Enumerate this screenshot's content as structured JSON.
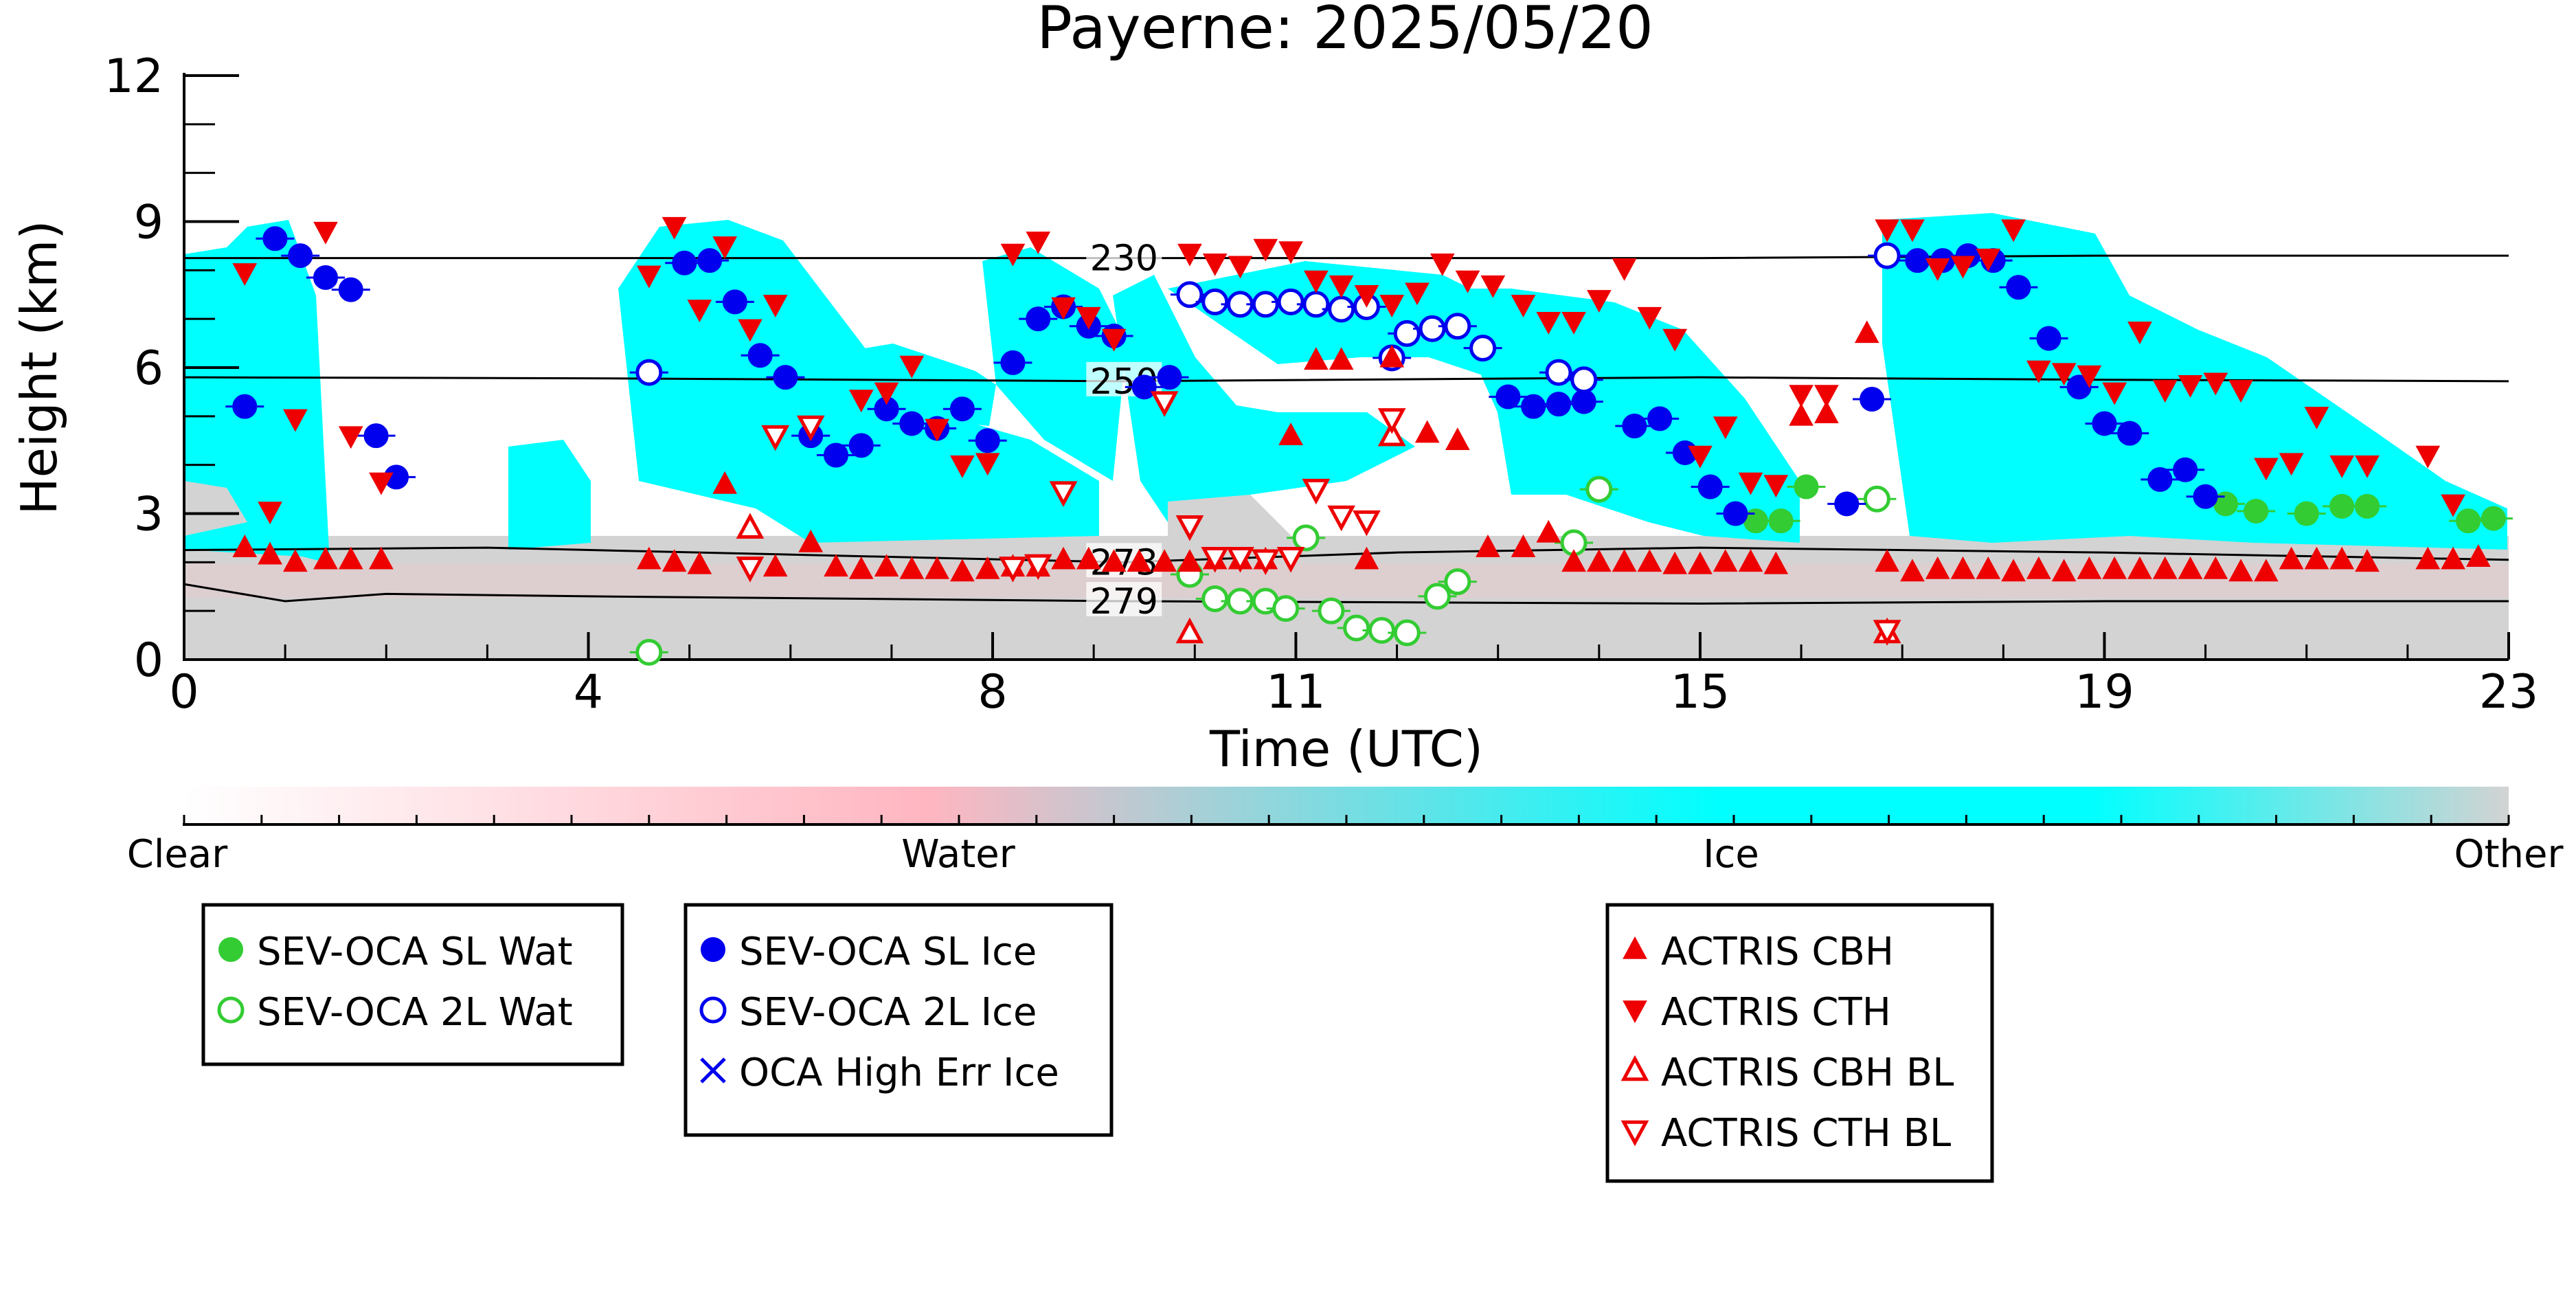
{
  "chart_data": {
    "type": "scatter",
    "title": "Payerne: 2025/05/20",
    "xlabel": "Time (UTC)",
    "ylabel": "Height (km)",
    "xlim": [
      0,
      23
    ],
    "ylim": [
      0,
      12
    ],
    "x_ticks": [
      "0",
      "4",
      "8",
      "11",
      "15",
      "19",
      "23"
    ],
    "y_ticks": [
      "0",
      "3",
      "6",
      "9",
      "12"
    ],
    "contours": [
      {
        "label": "230",
        "points": [
          [
            0,
            8.25
          ],
          [
            4,
            8.25
          ],
          [
            9.3,
            8.25
          ],
          [
            15,
            8.25
          ],
          [
            19,
            8.3
          ],
          [
            23,
            8.3
          ]
        ]
      },
      {
        "label": "250",
        "points": [
          [
            0,
            5.8
          ],
          [
            4,
            5.78
          ],
          [
            9.3,
            5.72
          ],
          [
            15,
            5.8
          ],
          [
            19,
            5.75
          ],
          [
            23,
            5.72
          ]
        ]
      },
      {
        "label": "273",
        "points": [
          [
            0,
            2.25
          ],
          [
            3,
            2.3
          ],
          [
            9.3,
            2.0
          ],
          [
            12,
            2.2
          ],
          [
            15,
            2.3
          ],
          [
            19,
            2.2
          ],
          [
            23,
            2.05
          ]
        ]
      },
      {
        "label": "279",
        "points": [
          [
            0,
            1.55
          ],
          [
            1,
            1.2
          ],
          [
            2,
            1.35
          ],
          [
            4,
            1.3
          ],
          [
            9.3,
            1.2
          ],
          [
            15,
            1.15
          ],
          [
            19,
            1.2
          ],
          [
            23,
            1.2
          ]
        ]
      }
    ],
    "colorbar": {
      "labels": [
        "Clear",
        "Water",
        "Ice",
        "Other"
      ],
      "colors": [
        "#ffffff",
        "#ffb6c1",
        "#00ffff",
        "#d3d3d3"
      ]
    },
    "series": [
      {
        "name": "SEV-OCA SL Wat",
        "marker": "circle-filled",
        "color": "#33cc33",
        "points": [
          [
            15.55,
            2.85
          ],
          [
            15.8,
            2.85
          ],
          [
            16.05,
            3.55
          ],
          [
            20.2,
            3.2
          ],
          [
            20.5,
            3.05
          ],
          [
            21.0,
            3.0
          ],
          [
            21.35,
            3.15
          ],
          [
            21.6,
            3.15
          ],
          [
            22.6,
            2.85
          ],
          [
            22.85,
            2.9
          ]
        ]
      },
      {
        "name": "SEV-OCA 2L Wat",
        "marker": "circle-open",
        "color": "#33cc33",
        "points": [
          [
            4.6,
            0.15
          ],
          [
            9.95,
            1.75
          ],
          [
            10.2,
            1.25
          ],
          [
            10.45,
            1.2
          ],
          [
            10.7,
            1.2
          ],
          [
            10.9,
            1.05
          ],
          [
            11.1,
            2.5
          ],
          [
            11.35,
            1.0
          ],
          [
            11.6,
            0.65
          ],
          [
            11.85,
            0.6
          ],
          [
            12.1,
            0.55
          ],
          [
            12.4,
            1.3
          ],
          [
            12.6,
            1.6
          ],
          [
            13.75,
            2.4
          ],
          [
            14.0,
            3.5
          ],
          [
            16.75,
            3.3
          ]
        ]
      },
      {
        "name": "SEV-OCA SL Ice",
        "marker": "circle-filled",
        "color": "#0000ee",
        "points": [
          [
            0.6,
            5.2
          ],
          [
            0.9,
            8.65
          ],
          [
            1.15,
            8.3
          ],
          [
            1.4,
            7.85
          ],
          [
            1.65,
            7.6
          ],
          [
            1.9,
            4.6
          ],
          [
            2.1,
            3.75
          ],
          [
            4.95,
            8.15
          ],
          [
            5.2,
            8.2
          ],
          [
            5.45,
            7.35
          ],
          [
            5.7,
            6.25
          ],
          [
            5.95,
            5.8
          ],
          [
            6.2,
            4.6
          ],
          [
            6.45,
            4.2
          ],
          [
            6.7,
            4.4
          ],
          [
            6.95,
            5.15
          ],
          [
            7.2,
            4.85
          ],
          [
            7.45,
            4.75
          ],
          [
            7.7,
            5.15
          ],
          [
            7.95,
            4.5
          ],
          [
            8.2,
            6.1
          ],
          [
            8.45,
            7.0
          ],
          [
            8.7,
            7.25
          ],
          [
            8.95,
            6.85
          ],
          [
            9.2,
            6.65
          ],
          [
            9.5,
            5.6
          ],
          [
            9.75,
            5.8
          ],
          [
            13.1,
            5.4
          ],
          [
            13.35,
            5.2
          ],
          [
            13.6,
            5.25
          ],
          [
            13.85,
            5.3
          ],
          [
            14.35,
            4.8
          ],
          [
            14.6,
            4.95
          ],
          [
            14.85,
            4.25
          ],
          [
            15.1,
            3.55
          ],
          [
            15.35,
            3.0
          ],
          [
            16.7,
            5.35
          ],
          [
            16.45,
            3.2
          ],
          [
            17.15,
            8.2
          ],
          [
            17.4,
            8.2
          ],
          [
            17.65,
            8.3
          ],
          [
            17.9,
            8.2
          ],
          [
            18.15,
            7.65
          ],
          [
            18.45,
            6.6
          ],
          [
            18.75,
            5.6
          ],
          [
            19.0,
            4.85
          ],
          [
            19.25,
            4.65
          ],
          [
            19.55,
            3.7
          ],
          [
            19.8,
            3.9
          ],
          [
            20.0,
            3.35
          ]
        ]
      },
      {
        "name": "SEV-OCA 2L Ice",
        "marker": "circle-open",
        "color": "#0000ee",
        "points": [
          [
            4.6,
            5.9
          ],
          [
            9.95,
            7.5
          ],
          [
            10.2,
            7.35
          ],
          [
            10.45,
            7.3
          ],
          [
            10.7,
            7.3
          ],
          [
            10.95,
            7.35
          ],
          [
            11.2,
            7.3
          ],
          [
            11.45,
            7.2
          ],
          [
            11.7,
            7.25
          ],
          [
            11.95,
            6.2
          ],
          [
            12.1,
            6.7
          ],
          [
            12.35,
            6.8
          ],
          [
            12.6,
            6.85
          ],
          [
            12.85,
            6.4
          ],
          [
            13.6,
            5.9
          ],
          [
            13.85,
            5.75
          ],
          [
            16.85,
            8.3
          ]
        ]
      },
      {
        "name": "OCA High Err Ice",
        "marker": "x",
        "color": "#0000ee",
        "points": []
      },
      {
        "name": "ACTRIS CBH",
        "marker": "triangle-up-filled",
        "color": "#ee0000",
        "points": [
          [
            0.6,
            2.3
          ],
          [
            0.85,
            2.15
          ],
          [
            1.1,
            2.0
          ],
          [
            1.4,
            2.05
          ],
          [
            1.65,
            2.05
          ],
          [
            1.95,
            2.05
          ],
          [
            4.6,
            2.05
          ],
          [
            4.85,
            2.0
          ],
          [
            5.1,
            1.95
          ],
          [
            5.35,
            3.6
          ],
          [
            5.85,
            1.9
          ],
          [
            6.2,
            2.4
          ],
          [
            6.45,
            1.9
          ],
          [
            6.7,
            1.85
          ],
          [
            6.95,
            1.9
          ],
          [
            7.2,
            1.85
          ],
          [
            7.45,
            1.85
          ],
          [
            7.7,
            1.8
          ],
          [
            7.95,
            1.85
          ],
          [
            8.2,
            1.9
          ],
          [
            8.45,
            1.9
          ],
          [
            8.7,
            2.05
          ],
          [
            8.95,
            2.05
          ],
          [
            9.2,
            2.0
          ],
          [
            9.45,
            2.0
          ],
          [
            9.7,
            2.0
          ],
          [
            9.95,
            2.0
          ],
          [
            10.2,
            2.05
          ],
          [
            10.45,
            2.05
          ],
          [
            10.7,
            2.05
          ],
          [
            10.95,
            4.6
          ],
          [
            11.2,
            6.15
          ],
          [
            11.45,
            6.15
          ],
          [
            11.7,
            2.05
          ],
          [
            11.95,
            6.2
          ],
          [
            12.3,
            4.65
          ],
          [
            12.6,
            4.5
          ],
          [
            12.9,
            2.3
          ],
          [
            13.25,
            2.3
          ],
          [
            13.5,
            2.6
          ],
          [
            13.75,
            2.0
          ],
          [
            14.0,
            2.0
          ],
          [
            14.25,
            2.0
          ],
          [
            14.5,
            2.0
          ],
          [
            14.75,
            1.95
          ],
          [
            15.0,
            1.95
          ],
          [
            15.25,
            2.0
          ],
          [
            15.5,
            2.0
          ],
          [
            15.75,
            1.95
          ],
          [
            16.0,
            5.0
          ],
          [
            16.25,
            5.05
          ],
          [
            16.65,
            6.7
          ],
          [
            16.85,
            2.0
          ],
          [
            17.1,
            1.8
          ],
          [
            17.35,
            1.85
          ],
          [
            17.6,
            1.85
          ],
          [
            17.85,
            1.85
          ],
          [
            18.1,
            1.8
          ],
          [
            18.35,
            1.85
          ],
          [
            18.6,
            1.8
          ],
          [
            18.85,
            1.85
          ],
          [
            19.1,
            1.85
          ],
          [
            19.35,
            1.85
          ],
          [
            19.6,
            1.85
          ],
          [
            19.85,
            1.85
          ],
          [
            20.1,
            1.85
          ],
          [
            20.35,
            1.8
          ],
          [
            20.6,
            1.8
          ],
          [
            20.85,
            2.05
          ],
          [
            21.1,
            2.05
          ],
          [
            21.35,
            2.05
          ],
          [
            21.6,
            2.0
          ],
          [
            22.2,
            2.05
          ],
          [
            22.45,
            2.05
          ],
          [
            22.7,
            2.1
          ]
        ]
      },
      {
        "name": "ACTRIS CTH",
        "marker": "triangle-down-filled",
        "color": "#ee0000",
        "points": [
          [
            0.6,
            7.95
          ],
          [
            0.85,
            3.05
          ],
          [
            1.1,
            4.95
          ],
          [
            1.4,
            8.8
          ],
          [
            1.65,
            4.6
          ],
          [
            1.95,
            3.65
          ],
          [
            4.6,
            7.9
          ],
          [
            4.85,
            8.9
          ],
          [
            5.1,
            7.2
          ],
          [
            5.35,
            8.5
          ],
          [
            5.6,
            6.8
          ],
          [
            5.85,
            7.3
          ],
          [
            6.7,
            5.35
          ],
          [
            6.95,
            5.5
          ],
          [
            7.2,
            6.05
          ],
          [
            7.45,
            4.75
          ],
          [
            7.7,
            4.0
          ],
          [
            7.95,
            4.05
          ],
          [
            8.2,
            8.35
          ],
          [
            8.45,
            8.6
          ],
          [
            8.7,
            7.25
          ],
          [
            8.95,
            7.05
          ],
          [
            9.2,
            6.6
          ],
          [
            9.95,
            8.35
          ],
          [
            10.2,
            8.15
          ],
          [
            10.45,
            8.1
          ],
          [
            10.7,
            8.45
          ],
          [
            10.95,
            8.4
          ],
          [
            11.2,
            7.8
          ],
          [
            11.45,
            7.7
          ],
          [
            11.7,
            7.5
          ],
          [
            11.95,
            7.3
          ],
          [
            12.2,
            7.55
          ],
          [
            12.45,
            8.15
          ],
          [
            12.7,
            7.8
          ],
          [
            12.95,
            7.7
          ],
          [
            13.25,
            7.3
          ],
          [
            13.5,
            6.95
          ],
          [
            13.75,
            6.95
          ],
          [
            14.0,
            7.4
          ],
          [
            14.25,
            8.05
          ],
          [
            14.5,
            7.05
          ],
          [
            14.75,
            6.6
          ],
          [
            15.0,
            4.2
          ],
          [
            15.25,
            4.8
          ],
          [
            15.5,
            3.65
          ],
          [
            15.75,
            3.6
          ],
          [
            16.0,
            5.45
          ],
          [
            16.25,
            5.45
          ],
          [
            16.85,
            8.85
          ],
          [
            17.1,
            8.85
          ],
          [
            17.35,
            8.05
          ],
          [
            17.6,
            8.1
          ],
          [
            17.85,
            8.25
          ],
          [
            18.1,
            8.85
          ],
          [
            18.35,
            5.95
          ],
          [
            18.6,
            5.9
          ],
          [
            18.85,
            5.85
          ],
          [
            19.1,
            5.5
          ],
          [
            19.35,
            6.75
          ],
          [
            19.6,
            5.55
          ],
          [
            19.85,
            5.65
          ],
          [
            20.1,
            5.7
          ],
          [
            20.35,
            5.55
          ],
          [
            20.6,
            3.95
          ],
          [
            20.85,
            4.05
          ],
          [
            21.1,
            5.0
          ],
          [
            21.35,
            4.0
          ],
          [
            21.6,
            4.0
          ],
          [
            22.2,
            4.2
          ],
          [
            22.45,
            3.2
          ]
        ]
      },
      {
        "name": "ACTRIS CBH BL",
        "marker": "triangle-up-open",
        "color": "#ee0000",
        "points": [
          [
            5.6,
            2.7
          ],
          [
            9.95,
            0.55
          ],
          [
            11.95,
            4.6
          ],
          [
            16.85,
            0.55
          ]
        ]
      },
      {
        "name": "ACTRIS CTH BL",
        "marker": "triangle-down-open",
        "color": "#ee0000",
        "points": [
          [
            5.6,
            1.9
          ],
          [
            5.85,
            4.6
          ],
          [
            6.2,
            4.8
          ],
          [
            8.2,
            1.9
          ],
          [
            8.45,
            1.95
          ],
          [
            8.7,
            3.45
          ],
          [
            9.7,
            5.3
          ],
          [
            9.95,
            2.75
          ],
          [
            10.2,
            2.1
          ],
          [
            10.45,
            2.1
          ],
          [
            10.7,
            2.05
          ],
          [
            10.95,
            2.1
          ],
          [
            11.2,
            3.5
          ],
          [
            11.45,
            2.95
          ],
          [
            11.7,
            2.85
          ],
          [
            11.95,
            4.95
          ],
          [
            16.85,
            0.6
          ]
        ]
      }
    ],
    "legend": [
      {
        "position": "below-left",
        "entries": [
          "SEV-OCA SL Wat",
          "SEV-OCA 2L Wat"
        ]
      },
      {
        "position": "below-center-left",
        "entries": [
          "SEV-OCA SL Ice",
          "SEV-OCA 2L Ice",
          "OCA High Err Ice"
        ]
      },
      {
        "position": "below-center-right",
        "entries": [
          "ACTRIS CBH",
          "ACTRIS CTH",
          "ACTRIS CBH BL",
          "ACTRIS CTH BL"
        ]
      }
    ],
    "grid": false
  }
}
